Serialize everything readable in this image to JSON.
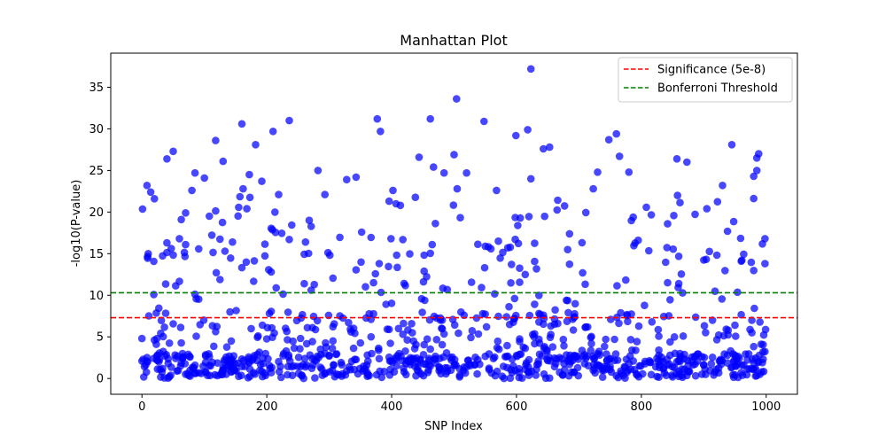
{
  "chart_data": {
    "type": "scatter",
    "title": "Manhattan Plot",
    "xlabel": "SNP Index",
    "ylabel": "-log10(P-value)",
    "xlim": [
      -50,
      1050
    ],
    "ylim": [
      -1.9,
      39.1
    ],
    "x_ticks": [
      0,
      200,
      400,
      600,
      800,
      1000
    ],
    "y_ticks": [
      0,
      5,
      10,
      15,
      20,
      25,
      30,
      35
    ],
    "grid": false,
    "legend_position": "top-right",
    "point_color": "#0000ff",
    "thresholds": [
      {
        "name": "Significance (5e-8)",
        "value": 7.3,
        "color": "#ff0000",
        "style": "dashed"
      },
      {
        "name": "Bonferroni Threshold",
        "value": 10.3,
        "color": "#008000",
        "style": "dashed"
      }
    ],
    "highlighted_points": [
      {
        "x": 0,
        "y": 4.8
      },
      {
        "x": 8,
        "y": 23.2
      },
      {
        "x": 14,
        "y": 22.4
      },
      {
        "x": 20,
        "y": 21.6
      },
      {
        "x": 10,
        "y": 15.0
      },
      {
        "x": 40,
        "y": 16.3
      },
      {
        "x": 40,
        "y": 26.4
      },
      {
        "x": 50,
        "y": 27.3
      },
      {
        "x": 60,
        "y": 16.8
      },
      {
        "x": 70,
        "y": 19.9
      },
      {
        "x": 80,
        "y": 22.6
      },
      {
        "x": 85,
        "y": 24.7
      },
      {
        "x": 100,
        "y": 24.1
      },
      {
        "x": 108,
        "y": 19.5
      },
      {
        "x": 118,
        "y": 28.6
      },
      {
        "x": 130,
        "y": 26.1
      },
      {
        "x": 145,
        "y": 16.4
      },
      {
        "x": 160,
        "y": 30.6
      },
      {
        "x": 162,
        "y": 22.8
      },
      {
        "x": 172,
        "y": 24.5
      },
      {
        "x": 182,
        "y": 28.1
      },
      {
        "x": 192,
        "y": 23.7
      },
      {
        "x": 210,
        "y": 29.7
      },
      {
        "x": 213,
        "y": 20.0
      },
      {
        "x": 219,
        "y": 22.1
      },
      {
        "x": 236,
        "y": 31.0
      },
      {
        "x": 236,
        "y": 16.7
      },
      {
        "x": 262,
        "y": 16.4
      },
      {
        "x": 268,
        "y": 19.0
      },
      {
        "x": 282,
        "y": 25.0
      },
      {
        "x": 293,
        "y": 22.1
      },
      {
        "x": 328,
        "y": 23.9
      },
      {
        "x": 343,
        "y": 24.2
      },
      {
        "x": 377,
        "y": 31.2
      },
      {
        "x": 382,
        "y": 29.7
      },
      {
        "x": 396,
        "y": 21.3
      },
      {
        "x": 402,
        "y": 22.6
      },
      {
        "x": 414,
        "y": 20.8
      },
      {
        "x": 444,
        "y": 26.6
      },
      {
        "x": 462,
        "y": 31.2
      },
      {
        "x": 467,
        "y": 25.4
      },
      {
        "x": 484,
        "y": 24.7
      },
      {
        "x": 500,
        "y": 26.9
      },
      {
        "x": 504,
        "y": 33.6
      },
      {
        "x": 505,
        "y": 22.8
      },
      {
        "x": 520,
        "y": 24.7
      },
      {
        "x": 548,
        "y": 30.9
      },
      {
        "x": 568,
        "y": 22.6
      },
      {
        "x": 599,
        "y": 29.2
      },
      {
        "x": 618,
        "y": 29.9
      },
      {
        "x": 623,
        "y": 37.2
      },
      {
        "x": 623,
        "y": 24.0
      },
      {
        "x": 643,
        "y": 27.6
      },
      {
        "x": 653,
        "y": 27.8
      },
      {
        "x": 723,
        "y": 22.8
      },
      {
        "x": 730,
        "y": 24.8
      },
      {
        "x": 748,
        "y": 28.7
      },
      {
        "x": 760,
        "y": 29.4
      },
      {
        "x": 765,
        "y": 26.7
      },
      {
        "x": 780,
        "y": 24.8
      },
      {
        "x": 857,
        "y": 26.4
      },
      {
        "x": 858,
        "y": 22.0
      },
      {
        "x": 873,
        "y": 26.0
      },
      {
        "x": 905,
        "y": 20.4
      },
      {
        "x": 930,
        "y": 23.2
      },
      {
        "x": 945,
        "y": 28.1
      },
      {
        "x": 980,
        "y": 24.3
      },
      {
        "x": 985,
        "y": 26.5
      },
      {
        "x": 988,
        "y": 27.0
      },
      {
        "x": 985,
        "y": 25.0
      },
      {
        "x": 998,
        "y": 16.8
      }
    ],
    "n_points": 1000,
    "x_range": [
      0,
      999
    ]
  }
}
